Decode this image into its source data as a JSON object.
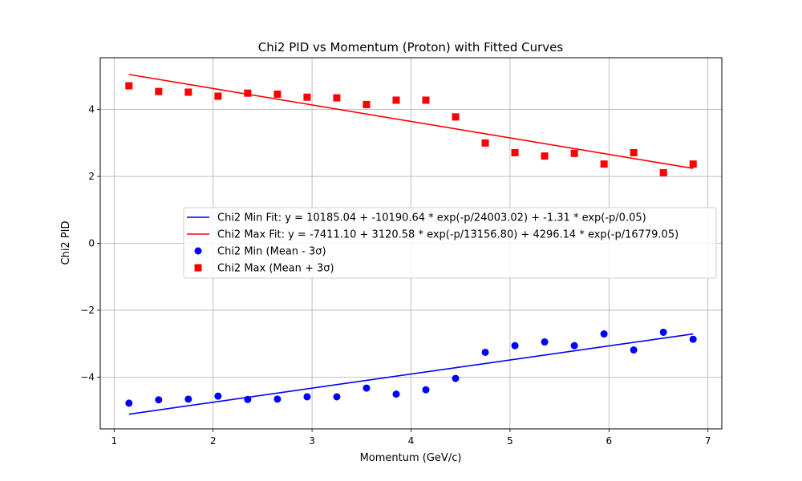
{
  "chart_data": {
    "type": "scatter",
    "title": "Chi2 PID vs Momentum (Proton) with Fitted Curves",
    "xlabel": "Momentum (GeV/c)",
    "ylabel": "Chi2 PID",
    "xlim": [
      0.86,
      7.14
    ],
    "ylim": [
      -5.55,
      5.55
    ],
    "xticks": [
      1,
      2,
      3,
      4,
      5,
      6,
      7
    ],
    "yticks": [
      -4,
      -2,
      0,
      2,
      4
    ],
    "xtick_labels": [
      "1",
      "2",
      "3",
      "4",
      "5",
      "6",
      "7"
    ],
    "ytick_labels": [
      "−4",
      "−2",
      "0",
      "2",
      "4"
    ],
    "grid": true,
    "legend_position": "center-right",
    "x": [
      1.15,
      1.45,
      1.75,
      2.05,
      2.35,
      2.65,
      2.95,
      3.25,
      3.55,
      3.85,
      4.15,
      4.45,
      4.75,
      5.05,
      5.35,
      5.65,
      5.95,
      6.25,
      6.55,
      6.85
    ],
    "series": [
      {
        "name": "Chi2 Min Fit: y = 10185.04 + -10190.64 * exp(-p/24003.02) + -1.31 * exp(-p/0.05)",
        "kind": "line",
        "color": "#0000ff",
        "endpoints_x": [
          1.15,
          6.85
        ],
        "endpoints_y": [
          -5.11,
          -2.71
        ]
      },
      {
        "name": "Chi2 Max Fit: y = -7411.10 + 3120.58 * exp(-p/13156.80) + 4296.14 * exp(-p/16779.05)",
        "kind": "line",
        "color": "#ff0000",
        "endpoints_x": [
          1.15,
          6.85
        ],
        "endpoints_y": [
          5.05,
          2.24
        ]
      },
      {
        "name": "Chi2 Min (Mean - 3σ)",
        "kind": "scatter",
        "marker": "circle",
        "color": "#0000ff",
        "values": [
          -4.78,
          -4.68,
          -4.66,
          -4.57,
          -4.67,
          -4.66,
          -4.59,
          -4.59,
          -4.33,
          -4.51,
          -4.38,
          -4.04,
          -3.26,
          -3.06,
          -2.95,
          -3.06,
          -2.71,
          -3.19,
          -2.66,
          -2.87
        ]
      },
      {
        "name": "Chi2 Max (Mean + 3σ)",
        "kind": "scatter",
        "marker": "square",
        "color": "#ff0000",
        "values": [
          4.71,
          4.54,
          4.52,
          4.4,
          4.49,
          4.46,
          4.37,
          4.35,
          4.15,
          4.28,
          4.28,
          3.78,
          3.0,
          2.71,
          2.61,
          2.69,
          2.37,
          2.71,
          2.11,
          2.37
        ]
      }
    ]
  }
}
